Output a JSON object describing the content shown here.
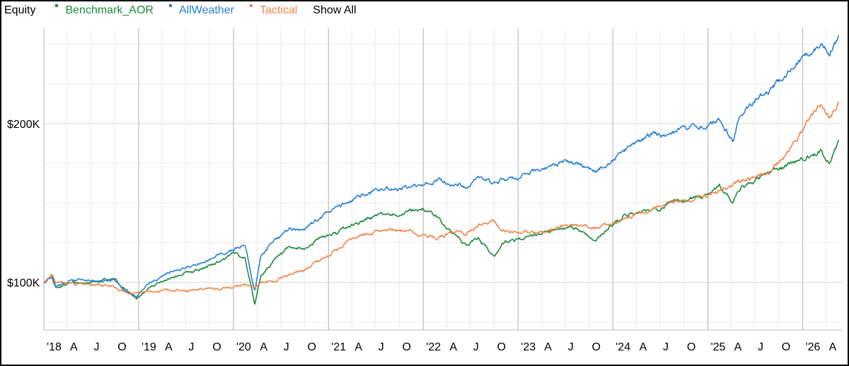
{
  "legend": {
    "title": "Equity",
    "show_all": "Show All"
  },
  "colors": {
    "Benchmark_AOR": "#1e8a3c",
    "AllWeather": "#2a7fd4",
    "Tactical": "#f0854a",
    "grid_major": "#bdbdbd",
    "grid_minor": "#ececec"
  },
  "chart_data": {
    "type": "line",
    "title": "Equity",
    "xlabel": "",
    "ylabel": "",
    "x_range": [
      "2018-01-01",
      "2026-06-01"
    ],
    "ylim": [
      70000,
      260000
    ],
    "ytick_values": [
      100000,
      200000
    ],
    "ytick_labels": [
      "$100K",
      "$200K"
    ],
    "xtick_dates": [
      "2018-01-01",
      "2018-04-01",
      "2018-07-01",
      "2018-10-01",
      "2019-01-01",
      "2019-04-01",
      "2019-07-01",
      "2019-10-01",
      "2020-01-01",
      "2020-04-01",
      "2020-07-01",
      "2020-10-01",
      "2021-01-01",
      "2021-04-01",
      "2021-07-01",
      "2021-10-01",
      "2022-01-01",
      "2022-04-01",
      "2022-07-01",
      "2022-10-01",
      "2023-01-01",
      "2023-04-01",
      "2023-07-01",
      "2023-10-01",
      "2024-01-01",
      "2024-04-01",
      "2024-07-01",
      "2024-10-01",
      "2025-01-01",
      "2025-04-01",
      "2025-07-01",
      "2025-10-01",
      "2026-01-01",
      "2026-04-01"
    ],
    "xtick_labels": [
      "'18",
      "A",
      "J",
      "O",
      "'19",
      "A",
      "J",
      "O",
      "'20",
      "A",
      "J",
      "O",
      "'21",
      "A",
      "J",
      "O",
      "'22",
      "A",
      "J",
      "O",
      "'23",
      "A",
      "J",
      "O",
      "'24",
      "A",
      "J",
      "O",
      "'25",
      "A",
      "J",
      "O",
      "'26",
      "A"
    ],
    "grid": true,
    "legend_position": "top-left",
    "series": [
      {
        "name": "Benchmark_AOR",
        "x": [
          "2018-01-01",
          "2018-02-01",
          "2018-02-15",
          "2018-04-01",
          "2018-06-01",
          "2018-08-01",
          "2018-10-01",
          "2018-11-01",
          "2018-12-24",
          "2019-02-01",
          "2019-05-01",
          "2019-07-01",
          "2019-09-01",
          "2019-11-01",
          "2020-01-01",
          "2020-02-15",
          "2020-03-23",
          "2020-04-15",
          "2020-06-01",
          "2020-08-01",
          "2020-10-01",
          "2020-12-01",
          "2021-02-01",
          "2021-04-01",
          "2021-06-01",
          "2021-08-01",
          "2021-10-01",
          "2021-12-31",
          "2022-03-01",
          "2022-05-01",
          "2022-06-15",
          "2022-08-01",
          "2022-09-30",
          "2022-11-01",
          "2023-01-01",
          "2023-03-01",
          "2023-05-01",
          "2023-07-01",
          "2023-08-15",
          "2023-10-27",
          "2023-12-31",
          "2024-03-01",
          "2024-06-01",
          "2024-08-01",
          "2024-10-01",
          "2024-12-31",
          "2025-02-15",
          "2025-04-08",
          "2025-05-01",
          "2025-07-01",
          "2025-09-01",
          "2025-11-01",
          "2026-01-01",
          "2026-02-15",
          "2026-03-15",
          "2026-04-15",
          "2026-05-20"
        ],
        "y": [
          100000,
          104000,
          97000,
          99000,
          100000,
          101000,
          102000,
          97000,
          90000,
          96000,
          103000,
          106000,
          108000,
          113000,
          118000,
          116000,
          86000,
          104000,
          113000,
          121000,
          121000,
          128000,
          131000,
          136000,
          140000,
          143000,
          143000,
          147000,
          140000,
          130000,
          123000,
          128000,
          116000,
          125000,
          127000,
          129000,
          131000,
          134000,
          134000,
          126000,
          137000,
          143000,
          145000,
          149000,
          151000,
          156000,
          161000,
          150000,
          158000,
          164000,
          170000,
          174000,
          178000,
          180000,
          183000,
          176000,
          189000
        ]
      },
      {
        "name": "AllWeather",
        "x": [
          "2018-01-01",
          "2018-02-01",
          "2018-02-15",
          "2018-04-01",
          "2018-06-01",
          "2018-08-01",
          "2018-10-01",
          "2018-11-01",
          "2018-12-24",
          "2019-02-01",
          "2019-05-01",
          "2019-07-01",
          "2019-09-01",
          "2019-11-01",
          "2020-01-01",
          "2020-02-15",
          "2020-03-23",
          "2020-04-15",
          "2020-06-01",
          "2020-08-01",
          "2020-10-01",
          "2020-12-01",
          "2021-02-01",
          "2021-04-01",
          "2021-06-01",
          "2021-08-01",
          "2021-10-01",
          "2021-12-31",
          "2022-03-01",
          "2022-05-01",
          "2022-06-15",
          "2022-08-01",
          "2022-09-30",
          "2022-11-01",
          "2023-01-01",
          "2023-03-01",
          "2023-05-01",
          "2023-07-01",
          "2023-08-15",
          "2023-10-27",
          "2023-12-31",
          "2024-03-01",
          "2024-06-01",
          "2024-08-01",
          "2024-10-01",
          "2024-12-31",
          "2025-02-15",
          "2025-04-08",
          "2025-05-01",
          "2025-07-01",
          "2025-09-01",
          "2025-11-01",
          "2026-01-01",
          "2026-02-15",
          "2026-03-15",
          "2026-04-15",
          "2026-05-20"
        ],
        "y": [
          100000,
          104000,
          98000,
          100000,
          102000,
          100000,
          101000,
          96000,
          91000,
          98000,
          106000,
          109000,
          112000,
          117000,
          121000,
          124000,
          94000,
          116000,
          125000,
          133000,
          133000,
          141000,
          147000,
          152000,
          156000,
          160000,
          158000,
          161000,
          165000,
          162000,
          160000,
          166000,
          162000,
          165000,
          166000,
          170000,
          172000,
          176000,
          175000,
          170000,
          177000,
          185000,
          194000,
          192000,
          197000,
          199000,
          203000,
          189000,
          205000,
          215000,
          222000,
          231000,
          240000,
          247000,
          251000,
          244000,
          255000
        ]
      },
      {
        "name": "Tactical",
        "x": [
          "2018-01-01",
          "2018-02-01",
          "2018-02-15",
          "2018-04-01",
          "2018-06-01",
          "2018-08-01",
          "2018-10-01",
          "2018-11-01",
          "2018-12-24",
          "2019-02-01",
          "2019-05-01",
          "2019-07-01",
          "2019-09-01",
          "2019-11-01",
          "2020-01-01",
          "2020-02-15",
          "2020-03-23",
          "2020-04-15",
          "2020-06-01",
          "2020-08-01",
          "2020-10-01",
          "2020-12-01",
          "2021-02-01",
          "2021-04-01",
          "2021-06-01",
          "2021-08-01",
          "2021-10-01",
          "2021-12-31",
          "2022-03-01",
          "2022-05-01",
          "2022-06-15",
          "2022-08-01",
          "2022-09-30",
          "2022-11-01",
          "2023-01-01",
          "2023-03-01",
          "2023-05-01",
          "2023-07-01",
          "2023-08-15",
          "2023-10-27",
          "2023-12-31",
          "2024-03-01",
          "2024-06-01",
          "2024-08-01",
          "2024-10-01",
          "2024-12-31",
          "2025-02-15",
          "2025-04-08",
          "2025-05-01",
          "2025-07-01",
          "2025-09-01",
          "2025-11-01",
          "2026-01-01",
          "2026-02-15",
          "2026-03-15",
          "2026-04-15",
          "2026-05-20"
        ],
        "y": [
          100000,
          104000,
          99000,
          100000,
          99000,
          99000,
          97000,
          94000,
          93000,
          94000,
          95000,
          95000,
          96000,
          96000,
          97000,
          99000,
          96000,
          100000,
          101000,
          105000,
          108000,
          114000,
          120000,
          128000,
          131000,
          133000,
          133000,
          130000,
          128000,
          132000,
          131000,
          136000,
          138000,
          133000,
          131000,
          131000,
          133000,
          135000,
          136000,
          134000,
          137000,
          141000,
          146000,
          150000,
          151000,
          155000,
          158000,
          161000,
          163000,
          166000,
          170000,
          181000,
          196000,
          208000,
          213000,
          203000,
          214000
        ]
      }
    ]
  }
}
